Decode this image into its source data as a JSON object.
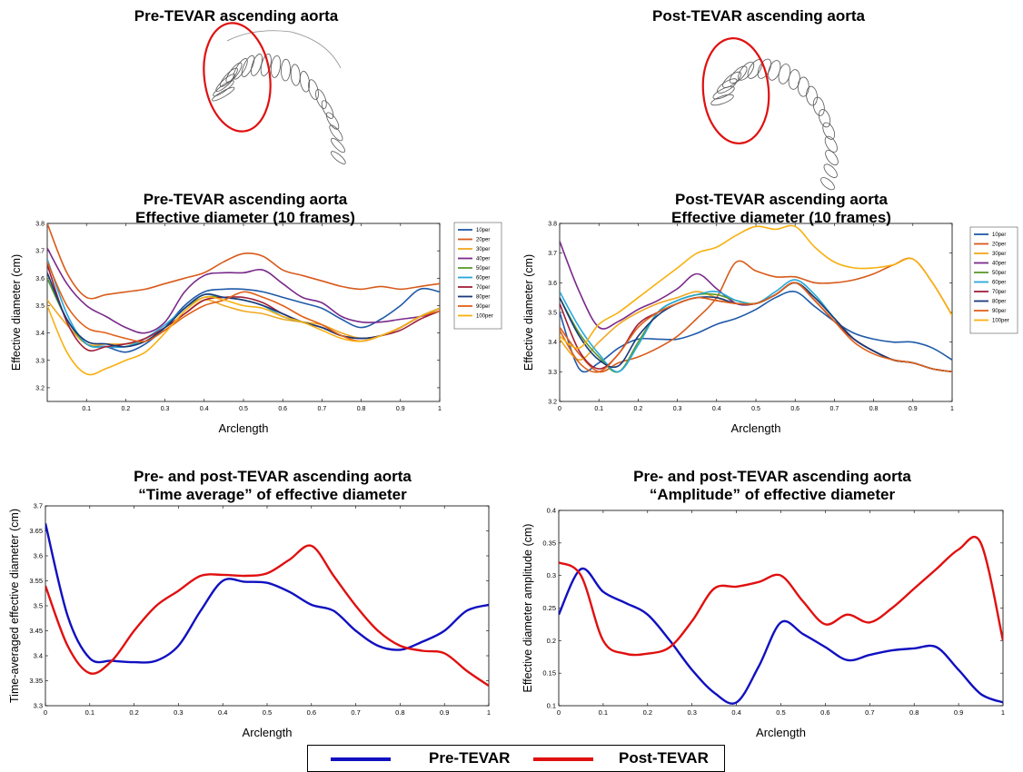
{
  "titles": {
    "pre_sketch": "Pre-TEVAR ascending aorta",
    "post_sketch": "Post-TEVAR ascending aorta"
  },
  "legend": {
    "pre_label": "Pre-TEVAR",
    "pre_color": "#1010c0",
    "post_label": "Post-TEVAR",
    "post_color": "#e01010"
  },
  "chart_data": [
    {
      "type": "line",
      "title": "Pre-TEVAR ascending aorta\nEffective diameter (10 frames)",
      "xlabel": "Arclength",
      "ylabel": "Effective diameter (cm)",
      "xlim": [
        0,
        1
      ],
      "ylim": [
        3.15,
        3.8
      ],
      "yticks": [
        3.2,
        3.3,
        3.4,
        3.5,
        3.6,
        3.7,
        3.8
      ],
      "xticks": [
        0.1,
        0.2,
        0.3,
        0.4,
        0.5,
        0.6,
        0.7,
        0.8,
        0.9,
        1
      ],
      "x": [
        0,
        0.05,
        0.1,
        0.15,
        0.2,
        0.25,
        0.3,
        0.35,
        0.4,
        0.45,
        0.5,
        0.55,
        0.6,
        0.65,
        0.7,
        0.75,
        0.8,
        0.85,
        0.9,
        0.95,
        1
      ],
      "legend_position": "right",
      "series": [
        {
          "name": "10per",
          "color": "#1f5aa8",
          "values": [
            3.6,
            3.45,
            3.36,
            3.35,
            3.33,
            3.36,
            3.42,
            3.5,
            3.55,
            3.56,
            3.56,
            3.55,
            3.53,
            3.51,
            3.49,
            3.45,
            3.42,
            3.45,
            3.5,
            3.56,
            3.55
          ]
        },
        {
          "name": "20per",
          "color": "#d85a1a",
          "values": [
            3.8,
            3.62,
            3.53,
            3.54,
            3.55,
            3.56,
            3.58,
            3.6,
            3.62,
            3.66,
            3.69,
            3.68,
            3.63,
            3.61,
            3.59,
            3.57,
            3.56,
            3.57,
            3.56,
            3.57,
            3.58
          ]
        },
        {
          "name": "30per",
          "color": "#f0a820",
          "values": [
            3.52,
            3.43,
            3.36,
            3.36,
            3.36,
            3.37,
            3.41,
            3.47,
            3.52,
            3.5,
            3.48,
            3.47,
            3.45,
            3.44,
            3.43,
            3.4,
            3.38,
            3.39,
            3.42,
            3.46,
            3.49
          ]
        },
        {
          "name": "40per",
          "color": "#7a2a8a",
          "values": [
            3.71,
            3.58,
            3.5,
            3.46,
            3.42,
            3.4,
            3.44,
            3.55,
            3.61,
            3.62,
            3.62,
            3.63,
            3.58,
            3.53,
            3.51,
            3.46,
            3.44,
            3.44,
            3.45,
            3.46,
            3.48
          ]
        },
        {
          "name": "50per",
          "color": "#5a9a2a",
          "values": [
            3.6,
            3.45,
            3.36,
            3.35,
            3.35,
            3.37,
            3.42,
            3.49,
            3.53,
            3.53,
            3.52,
            3.5,
            3.46,
            3.44,
            3.42,
            3.39,
            3.38,
            3.39,
            3.42,
            3.46,
            3.49
          ]
        },
        {
          "name": "60per",
          "color": "#28a8d8",
          "values": [
            3.67,
            3.47,
            3.36,
            3.35,
            3.35,
            3.38,
            3.43,
            3.49,
            3.54,
            3.53,
            3.52,
            3.5,
            3.46,
            3.44,
            3.42,
            3.39,
            3.38,
            3.39,
            3.42,
            3.46,
            3.49
          ]
        },
        {
          "name": "70per",
          "color": "#a0203a",
          "values": [
            3.65,
            3.44,
            3.34,
            3.35,
            3.36,
            3.38,
            3.42,
            3.47,
            3.52,
            3.53,
            3.53,
            3.51,
            3.47,
            3.44,
            3.42,
            3.39,
            3.38,
            3.39,
            3.41,
            3.45,
            3.48
          ]
        },
        {
          "name": "80per",
          "color": "#1a3a7a",
          "values": [
            3.62,
            3.45,
            3.37,
            3.36,
            3.35,
            3.37,
            3.42,
            3.49,
            3.54,
            3.53,
            3.52,
            3.5,
            3.47,
            3.44,
            3.42,
            3.39,
            3.38,
            3.39,
            3.42,
            3.46,
            3.49
          ]
        },
        {
          "name": "90per",
          "color": "#e06018",
          "values": [
            3.66,
            3.5,
            3.42,
            3.4,
            3.38,
            3.37,
            3.41,
            3.46,
            3.5,
            3.52,
            3.55,
            3.53,
            3.5,
            3.46,
            3.43,
            3.39,
            3.37,
            3.39,
            3.42,
            3.46,
            3.48
          ]
        },
        {
          "name": "100per",
          "color": "#f8b010",
          "values": [
            3.5,
            3.33,
            3.25,
            3.27,
            3.3,
            3.33,
            3.4,
            3.48,
            3.53,
            3.52,
            3.5,
            3.49,
            3.46,
            3.44,
            3.41,
            3.38,
            3.37,
            3.39,
            3.42,
            3.46,
            3.49
          ]
        }
      ]
    },
    {
      "type": "line",
      "title": "Post-TEVAR ascending aorta\nEffective diameter (10 frames)",
      "xlabel": "Arclength",
      "ylabel": "Effective diameter (cm)",
      "xlim": [
        0,
        1
      ],
      "ylim": [
        3.2,
        3.8
      ],
      "yticks": [
        3.2,
        3.3,
        3.4,
        3.5,
        3.6,
        3.7,
        3.8
      ],
      "xticks": [
        0,
        0.1,
        0.2,
        0.3,
        0.4,
        0.5,
        0.6,
        0.7,
        0.8,
        0.9,
        1
      ],
      "x": [
        0,
        0.05,
        0.1,
        0.15,
        0.2,
        0.25,
        0.3,
        0.35,
        0.4,
        0.45,
        0.5,
        0.55,
        0.6,
        0.65,
        0.7,
        0.75,
        0.8,
        0.85,
        0.9,
        0.95,
        1
      ],
      "legend_position": "right",
      "series": [
        {
          "name": "10per",
          "color": "#1f5aa8",
          "values": [
            3.5,
            3.31,
            3.33,
            3.38,
            3.41,
            3.41,
            3.41,
            3.43,
            3.46,
            3.48,
            3.51,
            3.55,
            3.57,
            3.52,
            3.47,
            3.43,
            3.41,
            3.4,
            3.4,
            3.38,
            3.34
          ]
        },
        {
          "name": "20per",
          "color": "#d85a1a",
          "values": [
            3.45,
            3.36,
            3.3,
            3.33,
            3.35,
            3.38,
            3.42,
            3.48,
            3.55,
            3.67,
            3.64,
            3.62,
            3.62,
            3.6,
            3.6,
            3.61,
            3.63,
            3.66,
            3.68,
            3.6,
            3.49
          ]
        },
        {
          "name": "30per",
          "color": "#f0a820",
          "values": [
            3.41,
            3.34,
            3.4,
            3.46,
            3.5,
            3.53,
            3.55,
            3.57,
            3.55,
            3.53,
            3.53,
            3.56,
            3.6,
            3.55,
            3.48,
            3.41,
            3.37,
            3.34,
            3.33,
            3.31,
            3.3
          ]
        },
        {
          "name": "40per",
          "color": "#7a2a8a",
          "values": [
            3.74,
            3.57,
            3.45,
            3.47,
            3.51,
            3.54,
            3.58,
            3.63,
            3.58,
            3.53,
            3.53,
            3.56,
            3.6,
            3.54,
            3.47,
            3.41,
            3.37,
            3.34,
            3.33,
            3.31,
            3.3
          ]
        },
        {
          "name": "50per",
          "color": "#5a9a2a",
          "values": [
            3.55,
            3.43,
            3.35,
            3.3,
            3.4,
            3.5,
            3.54,
            3.56,
            3.56,
            3.54,
            3.53,
            3.56,
            3.6,
            3.55,
            3.48,
            3.41,
            3.37,
            3.34,
            3.33,
            3.31,
            3.3
          ]
        },
        {
          "name": "60per",
          "color": "#28a8d8",
          "values": [
            3.57,
            3.45,
            3.36,
            3.3,
            3.39,
            3.5,
            3.54,
            3.56,
            3.57,
            3.54,
            3.53,
            3.57,
            3.61,
            3.56,
            3.48,
            3.41,
            3.37,
            3.34,
            3.33,
            3.31,
            3.3
          ]
        },
        {
          "name": "70per",
          "color": "#a0203a",
          "values": [
            3.53,
            3.37,
            3.31,
            3.36,
            3.46,
            3.5,
            3.53,
            3.55,
            3.54,
            3.53,
            3.53,
            3.56,
            3.6,
            3.54,
            3.47,
            3.41,
            3.37,
            3.34,
            3.33,
            3.31,
            3.3
          ]
        },
        {
          "name": "80per",
          "color": "#1a3a7a",
          "values": [
            3.55,
            3.42,
            3.34,
            3.32,
            3.42,
            3.49,
            3.53,
            3.55,
            3.55,
            3.53,
            3.53,
            3.56,
            3.6,
            3.55,
            3.48,
            3.41,
            3.37,
            3.34,
            3.33,
            3.31,
            3.3
          ]
        },
        {
          "name": "90per",
          "color": "#e06018",
          "values": [
            3.44,
            3.33,
            3.3,
            3.36,
            3.45,
            3.5,
            3.53,
            3.55,
            3.54,
            3.53,
            3.53,
            3.56,
            3.6,
            3.54,
            3.47,
            3.4,
            3.36,
            3.34,
            3.33,
            3.31,
            3.3
          ]
        },
        {
          "name": "100per",
          "color": "#f8b010",
          "values": [
            3.42,
            3.38,
            3.46,
            3.5,
            3.55,
            3.6,
            3.65,
            3.7,
            3.72,
            3.76,
            3.79,
            3.78,
            3.79,
            3.72,
            3.67,
            3.65,
            3.65,
            3.66,
            3.68,
            3.6,
            3.49
          ]
        }
      ]
    },
    {
      "type": "line",
      "title": "Pre- and post-TEVAR ascending aorta\n“Time average” of effective diameter",
      "xlabel": "Arclength",
      "ylabel": "Time-averaged effective diameter (cm)",
      "xlim": [
        0,
        1
      ],
      "ylim": [
        3.3,
        3.7
      ],
      "yticks": [
        3.3,
        3.35,
        3.4,
        3.45,
        3.5,
        3.55,
        3.6,
        3.65,
        3.7
      ],
      "xticks": [
        0,
        0.1,
        0.2,
        0.3,
        0.4,
        0.5,
        0.6,
        0.7,
        0.8,
        0.9,
        1
      ],
      "x": [
        0,
        0.05,
        0.1,
        0.15,
        0.2,
        0.25,
        0.3,
        0.35,
        0.4,
        0.45,
        0.5,
        0.55,
        0.6,
        0.65,
        0.7,
        0.75,
        0.8,
        0.85,
        0.9,
        0.95,
        1
      ],
      "series": [
        {
          "name": "Pre-TEVAR",
          "color": "#1010c0",
          "values": [
            3.665,
            3.48,
            3.395,
            3.39,
            3.387,
            3.39,
            3.42,
            3.49,
            3.55,
            3.548,
            3.546,
            3.528,
            3.502,
            3.49,
            3.45,
            3.42,
            3.412,
            3.428,
            3.45,
            3.49,
            3.502
          ]
        },
        {
          "name": "Post-TEVAR",
          "color": "#e01010",
          "values": [
            3.54,
            3.42,
            3.365,
            3.39,
            3.45,
            3.5,
            3.53,
            3.56,
            3.562,
            3.56,
            3.565,
            3.592,
            3.62,
            3.56,
            3.5,
            3.45,
            3.42,
            3.41,
            3.405,
            3.37,
            3.34
          ]
        }
      ]
    },
    {
      "type": "line",
      "title": "Pre- and post-TEVAR ascending aorta\n“Amplitude” of effective diameter",
      "xlabel": "Arclength",
      "ylabel": "Effective diameter amplitude (cm)",
      "xlim": [
        0,
        1
      ],
      "ylim": [
        0.1,
        0.4
      ],
      "yticks": [
        0.1,
        0.15,
        0.2,
        0.25,
        0.3,
        0.35,
        0.4
      ],
      "xticks": [
        0,
        0.1,
        0.2,
        0.3,
        0.4,
        0.5,
        0.6,
        0.7,
        0.8,
        0.9,
        1
      ],
      "x": [
        0,
        0.05,
        0.1,
        0.15,
        0.2,
        0.25,
        0.3,
        0.35,
        0.4,
        0.45,
        0.5,
        0.55,
        0.6,
        0.65,
        0.7,
        0.75,
        0.8,
        0.85,
        0.9,
        0.95,
        1
      ],
      "series": [
        {
          "name": "Pre-TEVAR",
          "color": "#1010c0",
          "values": [
            0.24,
            0.31,
            0.275,
            0.258,
            0.24,
            0.2,
            0.155,
            0.12,
            0.105,
            0.16,
            0.228,
            0.21,
            0.19,
            0.17,
            0.178,
            0.185,
            0.188,
            0.19,
            0.155,
            0.118,
            0.105
          ]
        },
        {
          "name": "Post-TEVAR",
          "color": "#e01010",
          "values": [
            0.32,
            0.3,
            0.2,
            0.18,
            0.18,
            0.19,
            0.23,
            0.28,
            0.283,
            0.29,
            0.3,
            0.26,
            0.225,
            0.24,
            0.228,
            0.25,
            0.28,
            0.31,
            0.34,
            0.35,
            0.2
          ]
        }
      ]
    }
  ]
}
